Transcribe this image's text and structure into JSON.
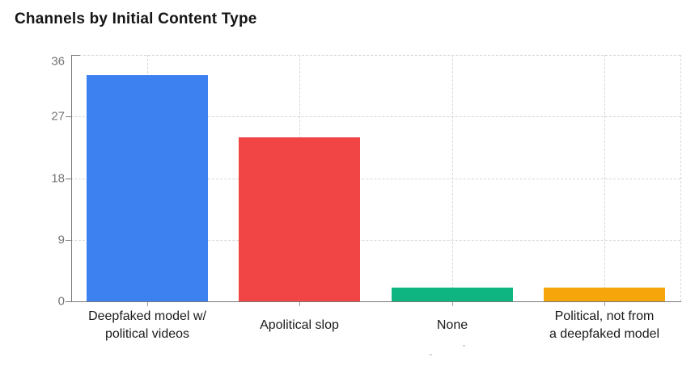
{
  "chart_data": {
    "type": "bar",
    "title": "Channels by Initial Content Type",
    "categories": [
      "Deepfaked model w/ political videos",
      "Apolitical slop",
      "None",
      "Political, not from a deepfaked model"
    ],
    "category_lines": [
      [
        "Deepfaked model w/",
        "political videos"
      ],
      [
        "Apolitical slop"
      ],
      [
        "None"
      ],
      [
        "Political, not from",
        "a deepfaked model"
      ]
    ],
    "values": [
      33,
      24,
      2,
      2
    ],
    "bar_colors": [
      "#3D80F0",
      "#F14545",
      "#0FB581",
      "#F6A50A"
    ],
    "yticks": [
      0,
      9,
      18,
      27,
      36
    ],
    "ylim": [
      0,
      36
    ],
    "xlabel": "",
    "ylabel": "",
    "grid": "dashed",
    "legend": "none",
    "colors": {
      "title": "#151515",
      "axis": "#7a7a7a",
      "gridline": "#d5d5d5",
      "tick_label": "#757575",
      "category_label": "#1a1a1a",
      "background": "#ffffff"
    }
  }
}
